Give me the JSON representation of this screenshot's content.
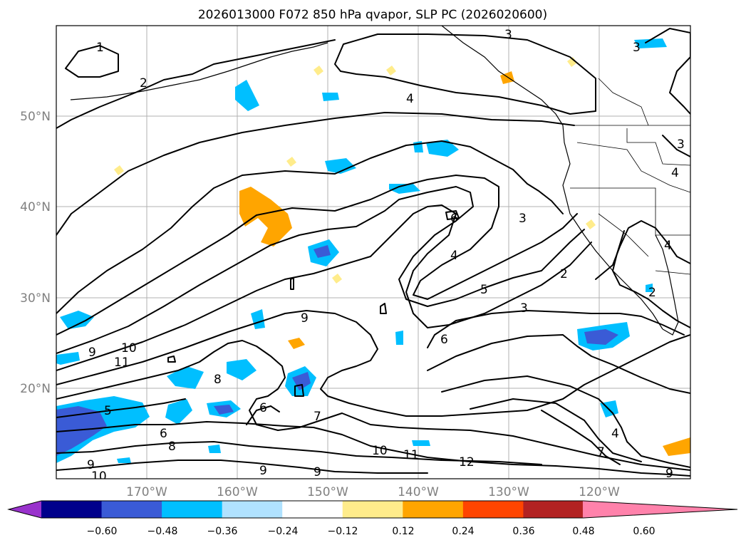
{
  "title": "2026013000 F072 850 hPa qvapor, SLP PC (2026020600)",
  "map": {
    "lat_labels": [
      "50°N",
      "40°N",
      "30°N",
      "20°N"
    ],
    "lon_labels": [
      "170°W",
      "160°W",
      "150°W",
      "140°W",
      "130°W",
      "120°W"
    ]
  },
  "colorbar": {
    "ticks": [
      "−0.60",
      "−0.48",
      "−0.36",
      "−0.24",
      "−0.12",
      "0.12",
      "0.24",
      "0.36",
      "0.48",
      "0.60"
    ],
    "colors": [
      "#9932cc",
      "#00008b",
      "#3a5bd6",
      "#00bfff",
      "#b0e2ff",
      "#ffffff",
      "#ffec8b",
      "#ffa500",
      "#ff4500",
      "#b22222",
      "#ff82ab"
    ]
  },
  "contour_labels": [
    "1",
    "2",
    "3",
    "4",
    "5",
    "6",
    "7",
    "8",
    "9",
    "10",
    "11",
    "12"
  ]
}
